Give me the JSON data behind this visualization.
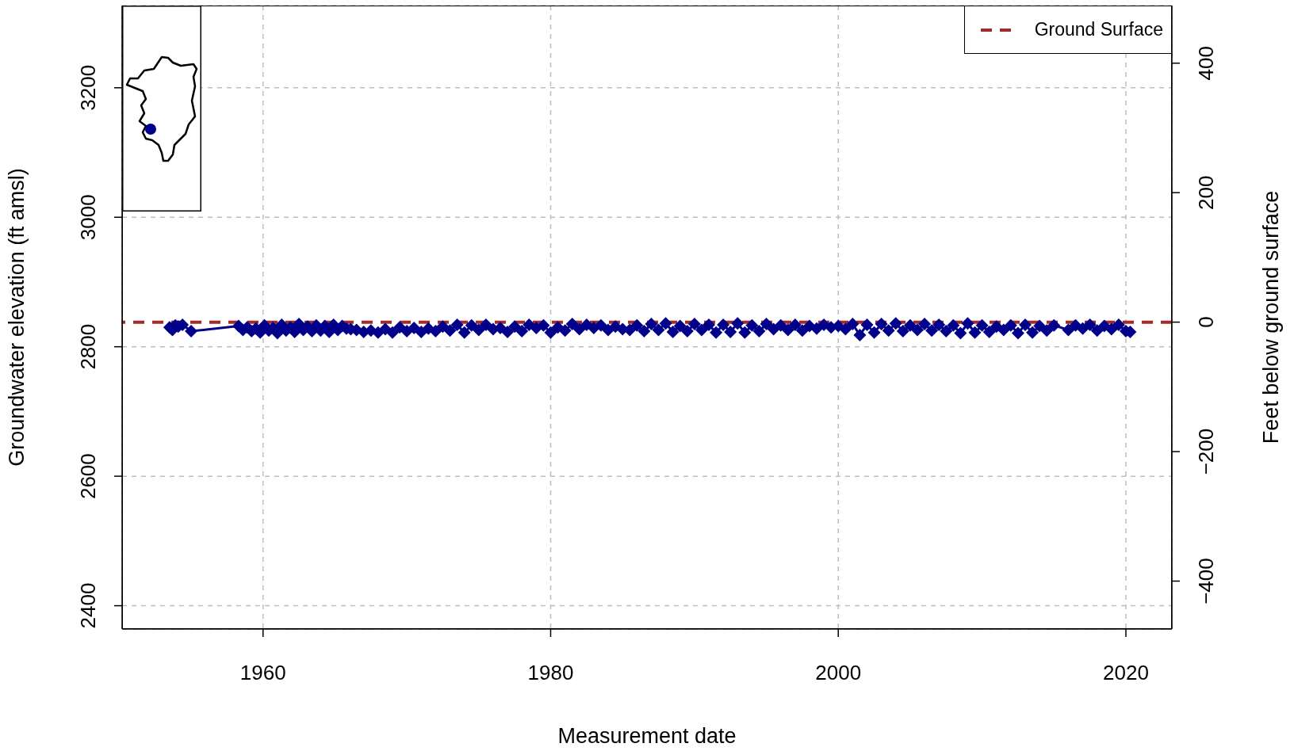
{
  "chart_data": {
    "type": "line",
    "xlabel": "Measurement date",
    "ylabel": "Groundwater elevation (ft amsl)",
    "y2label": "Feet below ground surface",
    "xlim": [
      1950.2,
      2023.2
    ],
    "xticks": [
      1960,
      1980,
      2000,
      2020
    ],
    "ylim": [
      2364,
      3327
    ],
    "yticks": [
      2400,
      2600,
      2800,
      3000,
      3200
    ],
    "y2lim": [
      -474,
      489
    ],
    "y2ticks": [
      {
        "value": -400,
        "label": "−400"
      },
      {
        "value": -200,
        "label": "−200"
      },
      0,
      200,
      400
    ],
    "grid": true,
    "legend": "top right",
    "marker": "diamond",
    "line_style": "solid",
    "ref_lines": [
      {
        "axis": "y2",
        "value": 0,
        "label": "Ground Surface",
        "color": "#a52a2a",
        "line_style": "dashed"
      }
    ],
    "series": [
      {
        "color": "#00008b",
        "x": [
          1953.5,
          1953.7,
          1953.9,
          1954.1,
          1954.4,
          1955.0,
          1958.3,
          1958.6,
          1958.9,
          1959.2,
          1959.5,
          1959.8,
          1960.1,
          1960.4,
          1960.7,
          1961.0,
          1961.3,
          1961.6,
          1961.9,
          1962.2,
          1962.5,
          1962.8,
          1963.1,
          1963.4,
          1963.7,
          1964.0,
          1964.3,
          1964.6,
          1964.9,
          1965.2,
          1965.5,
          1965.8,
          1966.1,
          1966.5,
          1967.0,
          1967.5,
          1968.0,
          1968.5,
          1969.0,
          1969.5,
          1970.0,
          1970.5,
          1971.0,
          1971.5,
          1972.0,
          1972.5,
          1973.0,
          1973.5,
          1974.0,
          1974.5,
          1975.0,
          1975.5,
          1976.0,
          1976.5,
          1977.0,
          1977.5,
          1978.0,
          1978.5,
          1979.0,
          1979.5,
          1980.0,
          1980.5,
          1981.0,
          1981.5,
          1982.0,
          1982.5,
          1983.0,
          1983.5,
          1984.0,
          1984.5,
          1985.0,
          1985.5,
          1986.0,
          1986.5,
          1987.0,
          1987.5,
          1988.0,
          1988.5,
          1989.0,
          1989.5,
          1990.0,
          1990.5,
          1991.0,
          1991.5,
          1992.0,
          1992.5,
          1993.0,
          1993.5,
          1994.0,
          1994.5,
          1995.0,
          1995.5,
          1996.0,
          1996.5,
          1997.0,
          1997.5,
          1998.0,
          1998.5,
          1999.0,
          1999.5,
          2000.0,
          2000.5,
          2001.0,
          2001.5,
          2002.0,
          2002.5,
          2003.0,
          2003.5,
          2004.0,
          2004.5,
          2005.0,
          2005.5,
          2006.0,
          2006.5,
          2007.0,
          2007.5,
          2008.0,
          2008.5,
          2009.0,
          2009.5,
          2010.0,
          2010.5,
          2011.0,
          2011.5,
          2012.0,
          2012.5,
          2013.0,
          2013.5,
          2014.0,
          2014.5,
          2015.0,
          2016.0,
          2016.5,
          2017.0,
          2017.5,
          2018.0,
          2018.5,
          2019.0,
          2019.5,
          2020.0,
          2020.3
        ],
        "values": [
          2830,
          2826,
          2833,
          2831,
          2834,
          2824,
          2832,
          2826,
          2830,
          2824,
          2828,
          2822,
          2833,
          2825,
          2829,
          2821,
          2834,
          2825,
          2830,
          2823,
          2835,
          2826,
          2831,
          2824,
          2833,
          2825,
          2832,
          2823,
          2834,
          2826,
          2832,
          2828,
          2827,
          2826,
          2823,
          2825,
          2822,
          2827,
          2822,
          2830,
          2824,
          2829,
          2823,
          2828,
          2824,
          2831,
          2825,
          2834,
          2822,
          2833,
          2826,
          2834,
          2827,
          2829,
          2823,
          2831,
          2824,
          2834,
          2829,
          2833,
          2822,
          2830,
          2825,
          2835,
          2827,
          2834,
          2829,
          2833,
          2826,
          2831,
          2827,
          2826,
          2833,
          2824,
          2835,
          2826,
          2836,
          2823,
          2832,
          2824,
          2835,
          2826,
          2834,
          2822,
          2834,
          2823,
          2836,
          2822,
          2833,
          2824,
          2835,
          2827,
          2833,
          2826,
          2834,
          2825,
          2832,
          2828,
          2834,
          2830,
          2832,
          2827,
          2835,
          2818,
          2834,
          2822,
          2835,
          2825,
          2836,
          2824,
          2833,
          2826,
          2835,
          2825,
          2834,
          2824,
          2833,
          2821,
          2836,
          2822,
          2833,
          2823,
          2831,
          2826,
          2833,
          2821,
          2834,
          2822,
          2832,
          2825,
          2833,
          2826,
          2833,
          2828,
          2834,
          2825,
          2832,
          2827,
          2834,
          2824,
          2823
        ]
      }
    ]
  }
}
